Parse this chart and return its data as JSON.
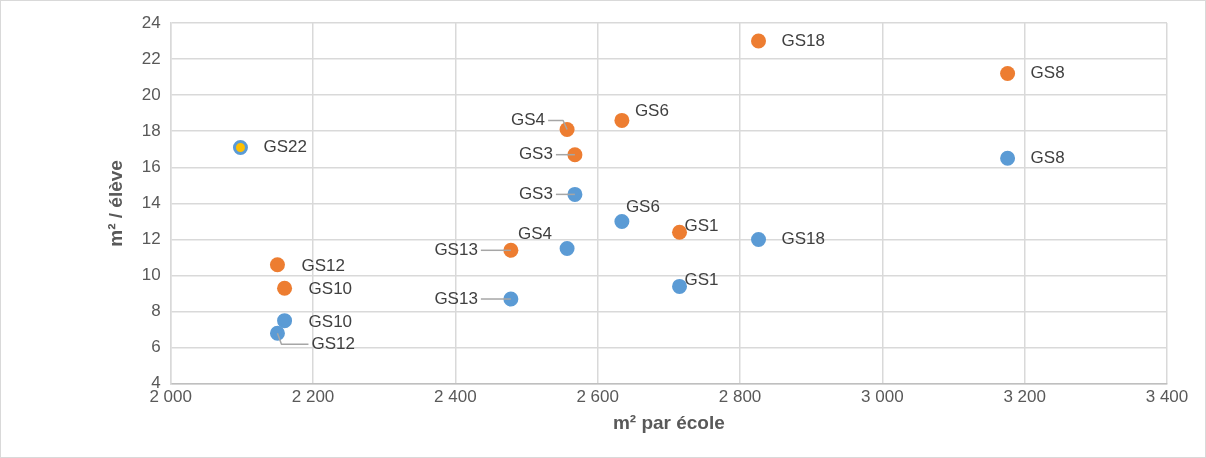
{
  "chart_data": {
    "type": "scatter",
    "xlabel": "m² par école",
    "ylabel": "m² / élève",
    "xlim": [
      2000,
      3400
    ],
    "xticks": [
      {
        "value": 2000,
        "label": "2 000"
      },
      {
        "value": 2200,
        "label": "2 200"
      },
      {
        "value": 2400,
        "label": "2 400"
      },
      {
        "value": 2600,
        "label": "2 600"
      },
      {
        "value": 2800,
        "label": "2 800"
      },
      {
        "value": 3000,
        "label": "3 000"
      },
      {
        "value": 3200,
        "label": "3 200"
      },
      {
        "value": 3400,
        "label": "3 400"
      }
    ],
    "ylim": [
      4,
      24
    ],
    "yticks": [
      4,
      6,
      8,
      10,
      12,
      14,
      16,
      18,
      20,
      22,
      24
    ],
    "grid": true,
    "legend": false,
    "marker": "circle",
    "series": [
      {
        "color": "#ed7d31",
        "x": [
          2715,
          2568,
          2557,
          2634,
          3176,
          2160,
          2150,
          2478,
          2826
        ],
        "values": [
          12.4,
          16.7,
          18.1,
          18.6,
          21.2,
          9.3,
          10.6,
          11.4,
          23.0
        ]
      },
      {
        "color": "#5b9bd5",
        "colors": [
          "#5b9bd5",
          "#5b9bd5",
          "#5b9bd5",
          "#5b9bd5",
          "#5b9bd5",
          "#5b9bd5",
          "#5b9bd5",
          "#5b9bd5",
          "#5b9bd5",
          "#ffc000"
        ],
        "x": [
          2715,
          2568,
          2557,
          2634,
          3176,
          2160,
          2150,
          2478,
          2826,
          2098
        ],
        "values": [
          9.4,
          14.5,
          11.5,
          13.0,
          16.5,
          7.5,
          6.8,
          8.7,
          12.0,
          17.1
        ]
      }
    ],
    "annotations": [
      {
        "text": "GS1",
        "x": 2715,
        "y": 12.4
      },
      {
        "text": "GS3",
        "x": 2568,
        "y": 16.7
      },
      {
        "text": "GS4",
        "x": 2557,
        "y": 18.1
      },
      {
        "text": "GS6",
        "x": 2634,
        "y": 18.6
      },
      {
        "text": "GS8",
        "x": 3176,
        "y": 21.2
      },
      {
        "text": "GS10",
        "x": 2160,
        "y": 9.3
      },
      {
        "text": "GS12",
        "x": 2150,
        "y": 10.6
      },
      {
        "text": "GS13",
        "x": 2478,
        "y": 11.4
      },
      {
        "text": "GS18",
        "x": 2826,
        "y": 23.0
      },
      {
        "text": "GS1",
        "x": 2715,
        "y": 9.4
      },
      {
        "text": "GS3",
        "x": 2568,
        "y": 14.5
      },
      {
        "text": "GS4",
        "x": 2557,
        "y": 11.5
      },
      {
        "text": "GS6",
        "x": 2634,
        "y": 13.0
      },
      {
        "text": "GS8",
        "x": 3176,
        "y": 16.5
      },
      {
        "text": "GS10",
        "x": 2160,
        "y": 7.5
      },
      {
        "text": "GS12",
        "x": 2150,
        "y": 6.8
      },
      {
        "text": "GS13",
        "x": 2478,
        "y": 8.7
      },
      {
        "text": "GS18",
        "x": 2826,
        "y": 12.0
      },
      {
        "text": "GS22",
        "x": 2098,
        "y": 17.1
      }
    ]
  }
}
